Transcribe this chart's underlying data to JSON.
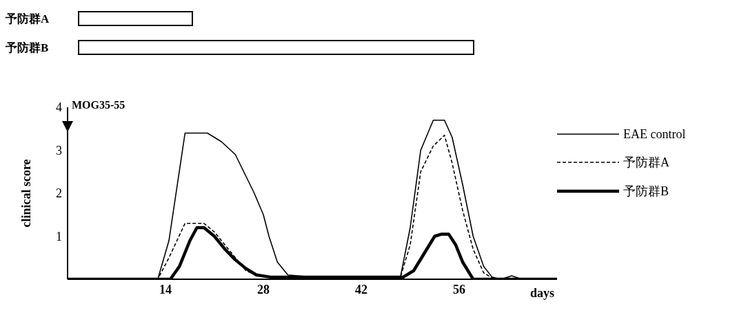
{
  "chart_data": {
    "type": "line",
    "ylabel": "clinical score",
    "xlabel": "days",
    "xlim": [
      0,
      70
    ],
    "xticks": [
      14,
      28,
      42,
      56
    ],
    "ylim": [
      0,
      4
    ],
    "yticks": [
      1,
      2,
      3,
      4
    ],
    "legend": "right",
    "marker": "none",
    "annotations": [
      "予防群A",
      "予防群B",
      "MOG35-55"
    ],
    "series": [
      {
        "name": "EAE control",
        "color": "#000000",
        "line_style": "solid",
        "x": [
          0,
          12.9,
          14.5,
          16.8,
          20,
          22,
          24,
          25.5,
          26.7,
          28,
          28.8,
          30,
          31.5,
          35,
          40,
          47.6,
          49,
          50.5,
          52.3,
          53.9,
          55,
          56.5,
          58,
          59.5,
          60.7,
          62,
          63.5,
          65,
          70
        ],
        "values": [
          0,
          0,
          0.9,
          3.4,
          3.4,
          3.2,
          2.9,
          2.4,
          2,
          1.5,
          1,
          0.4,
          0.1,
          0.05,
          0.05,
          0.05,
          1.2,
          3,
          3.7,
          3.7,
          3.3,
          2.2,
          1,
          0.3,
          0.05,
          0,
          0.08,
          0,
          0
        ]
      },
      {
        "name": "予防群A",
        "color": "#000000",
        "line_style": "dashed",
        "x": [
          0,
          12.9,
          14.5,
          16.8,
          19.5,
          21,
          22.5,
          24,
          25.5,
          27,
          28.5,
          35,
          40,
          47.6,
          49,
          50.5,
          52.3,
          53.9,
          55,
          56.5,
          58,
          59.5,
          61,
          70
        ],
        "values": [
          0,
          0,
          0.5,
          1.3,
          1.3,
          1.1,
          0.8,
          0.5,
          0.2,
          0.1,
          0.05,
          0.05,
          0.05,
          0.05,
          0.8,
          2.5,
          3.1,
          3.35,
          2.7,
          1.6,
          0.7,
          0.15,
          0,
          0
        ]
      },
      {
        "name": "予防群B",
        "color": "#000000",
        "line_style": "solid",
        "x": [
          0,
          14.7,
          16,
          17.5,
          18.5,
          19.5,
          21,
          22.5,
          24,
          25.5,
          27,
          29,
          35,
          40,
          48,
          49.5,
          51,
          52.5,
          53.5,
          54.5,
          55.5,
          56.5,
          58,
          70
        ],
        "values": [
          0,
          0,
          0.3,
          0.9,
          1.2,
          1.2,
          1,
          0.7,
          0.45,
          0.25,
          0.1,
          0.05,
          0.05,
          0.05,
          0.05,
          0.2,
          0.6,
          1,
          1.05,
          1.05,
          0.8,
          0.4,
          0,
          0
        ]
      }
    ]
  }
}
